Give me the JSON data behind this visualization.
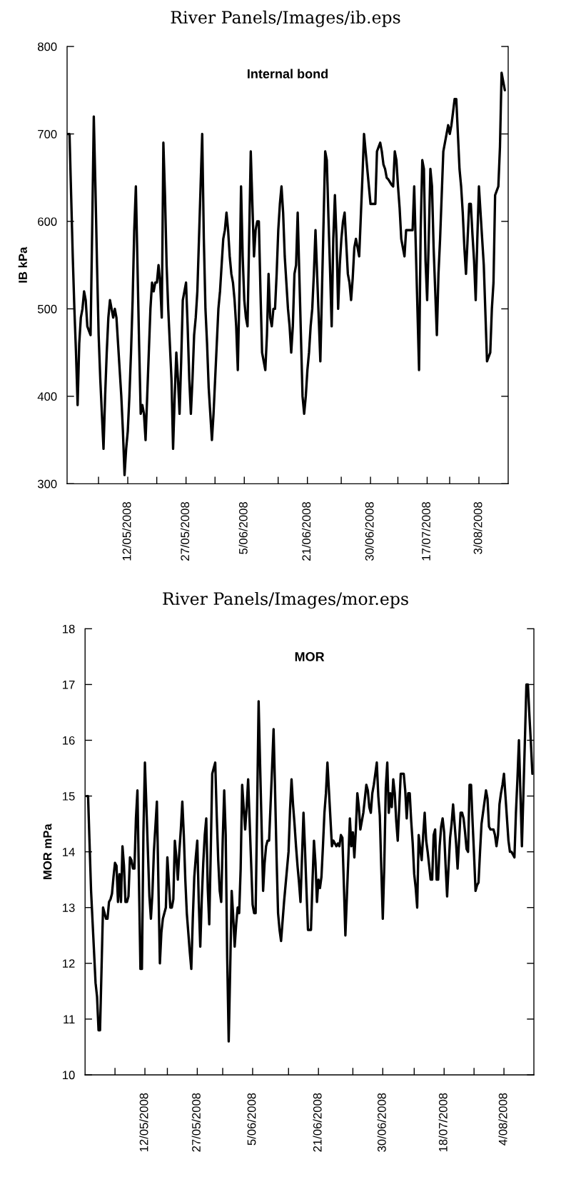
{
  "chart_data": [
    {
      "type": "line",
      "title": "Internal bond",
      "ylabel": "IB kPa",
      "annotations": [
        "River Panels/Images/ib.eps"
      ],
      "ylim": [
        300,
        800
      ],
      "yticks": [
        300,
        400,
        500,
        600,
        700,
        800
      ],
      "categories": [
        null,
        null,
        null,
        null,
        null,
        null,
        null,
        null,
        null,
        null,
        null,
        null,
        null,
        null,
        null,
        null,
        null,
        null,
        null,
        null,
        null,
        null,
        null,
        null,
        null,
        null,
        null,
        null,
        null,
        null,
        null,
        null,
        null,
        null,
        null,
        null,
        null,
        "12/05/2008",
        null,
        null,
        null,
        null,
        null,
        null,
        null,
        null,
        null,
        null,
        null,
        null,
        null,
        null,
        null,
        null,
        null,
        null,
        null,
        null,
        null,
        null,
        null,
        null,
        null,
        null,
        null,
        null,
        null,
        null,
        null,
        null,
        null,
        null,
        null,
        "27/05/2008",
        null,
        null,
        null,
        null,
        null,
        null,
        null,
        null,
        null,
        null,
        null,
        null,
        null,
        null,
        null,
        null,
        null,
        null,
        null,
        null,
        null,
        null,
        null,
        null,
        null,
        null,
        null,
        null,
        null,
        null,
        null,
        null,
        null,
        null,
        null,
        "5/06/2008",
        null,
        null,
        null,
        null,
        null,
        null,
        null,
        null,
        null,
        null,
        null,
        null,
        null,
        null,
        null,
        null,
        null,
        null,
        null,
        null,
        null,
        null,
        null,
        null,
        null,
        null,
        null,
        null,
        null,
        null,
        null,
        null,
        null,
        null,
        null,
        null,
        null,
        null,
        "21/06/2008",
        null,
        null,
        null,
        null,
        null,
        null,
        null,
        null,
        null,
        null,
        null,
        null,
        null,
        null,
        null,
        null,
        null,
        null,
        null,
        null,
        null,
        null,
        null,
        null,
        null,
        null,
        null,
        null,
        null,
        null,
        null,
        null,
        null,
        null,
        null,
        null,
        null,
        null,
        "30/06/2008",
        null,
        null,
        null,
        null,
        null,
        null,
        null,
        null,
        null,
        null,
        null,
        null,
        null,
        null,
        null,
        null,
        null,
        null,
        null,
        null,
        null,
        null,
        null,
        null,
        null,
        null,
        null,
        null,
        null,
        null,
        null,
        null,
        null,
        null,
        "17/07/2008",
        null,
        null,
        null,
        null,
        null,
        null,
        null,
        null,
        null,
        null,
        null,
        null,
        null,
        null,
        null,
        null,
        null,
        null,
        null,
        null,
        null,
        null,
        null,
        null,
        null,
        null,
        null,
        null,
        null,
        null,
        null,
        "3/08/2008",
        null,
        null,
        null,
        null,
        null,
        null,
        null,
        null,
        null,
        null,
        null,
        null,
        null,
        null,
        null,
        null
      ],
      "series": [
        {
          "color": "#000000",
          "values": [
            700,
            700,
            630,
            560,
            500,
            450,
            390,
            460,
            490,
            500,
            520,
            510,
            480,
            475,
            470,
            590,
            720,
            640,
            550,
            470,
            420,
            380,
            340,
            400,
            450,
            490,
            510,
            500,
            490,
            500,
            490,
            460,
            430,
            400,
            360,
            310,
            340,
            360,
            400,
            450,
            510,
            590,
            640,
            550,
            460,
            380,
            390,
            380,
            350,
            400,
            450,
            500,
            530,
            520,
            530,
            530,
            550,
            530,
            490,
            690,
            630,
            550,
            500,
            460,
            420,
            340,
            400,
            450,
            420,
            380,
            440,
            510,
            520,
            530,
            480,
            420,
            380,
            420,
            470,
            490,
            520,
            580,
            640,
            700,
            580,
            500,
            460,
            410,
            380,
            350,
            380,
            420,
            460,
            500,
            520,
            550,
            580,
            590,
            610,
            590,
            560,
            540,
            530,
            510,
            480,
            430,
            520,
            640,
            560,
            510,
            490,
            480,
            580,
            680,
            620,
            560,
            590,
            600,
            600,
            520,
            450,
            440,
            430,
            470,
            540,
            490,
            480,
            500,
            500,
            540,
            590,
            620,
            640,
            610,
            560,
            530,
            500,
            480,
            450,
            480,
            540,
            550,
            610,
            540,
            470,
            400,
            380,
            400,
            430,
            450,
            480,
            500,
            540,
            590,
            540,
            490,
            440,
            520,
            600,
            680,
            670,
            605,
            545,
            480,
            580,
            630,
            580,
            500,
            550,
            580,
            600,
            610,
            575,
            540,
            530,
            510,
            535,
            570,
            580,
            570,
            560,
            605,
            650,
            700,
            680,
            660,
            640,
            620,
            620,
            620,
            620,
            680,
            685,
            690,
            680,
            665,
            660,
            650,
            648,
            645,
            642,
            640,
            680,
            670,
            640,
            615,
            580,
            570,
            560,
            590,
            590,
            590,
            590,
            590,
            640,
            570,
            500,
            430,
            590,
            670,
            660,
            555,
            510,
            580,
            660,
            640,
            570,
            520,
            470,
            540,
            580,
            630,
            680,
            690,
            700,
            710,
            700,
            710,
            725,
            740,
            740,
            700,
            660,
            640,
            610,
            570,
            540,
            580,
            620,
            620,
            585,
            555,
            510,
            580,
            640,
            610,
            580,
            550,
            495,
            440,
            445,
            450,
            500,
            530,
            630,
            635,
            640,
            685,
            770,
            760,
            750
          ]
        }
      ]
    },
    {
      "type": "line",
      "title": "MOR",
      "ylabel": "MOR mPa",
      "annotations": [
        "River Panels/Images/mor.eps"
      ],
      "ylim": [
        10,
        18
      ],
      "yticks": [
        10,
        11,
        12,
        13,
        14,
        15,
        16,
        17,
        18
      ],
      "categories": [
        null,
        null,
        null,
        null,
        null,
        null,
        null,
        null,
        null,
        null,
        null,
        null,
        null,
        null,
        null,
        null,
        null,
        null,
        null,
        null,
        null,
        null,
        null,
        null,
        null,
        null,
        null,
        null,
        null,
        null,
        null,
        null,
        null,
        null,
        null,
        null,
        null,
        null,
        null,
        "12/05/2008",
        null,
        null,
        null,
        null,
        null,
        null,
        null,
        null,
        null,
        null,
        null,
        null,
        null,
        null,
        null,
        null,
        null,
        null,
        null,
        null,
        null,
        null,
        null,
        null,
        null,
        null,
        null,
        null,
        null,
        null,
        null,
        null,
        null,
        null,
        "27/05/2008",
        null,
        null,
        null,
        null,
        null,
        null,
        null,
        null,
        null,
        null,
        null,
        null,
        null,
        null,
        null,
        null,
        null,
        null,
        null,
        null,
        null,
        null,
        null,
        null,
        null,
        null,
        null,
        null,
        null,
        null,
        null,
        null,
        null,
        null,
        null,
        null,
        "5/06/2008",
        null,
        null,
        null,
        null,
        null,
        null,
        null,
        null,
        null,
        null,
        null,
        null,
        null,
        null,
        null,
        null,
        null,
        null,
        null,
        null,
        null,
        null,
        null,
        null,
        null,
        null,
        null,
        null,
        null,
        null,
        null,
        null,
        null,
        null,
        null,
        null,
        null,
        null,
        null,
        null,
        null,
        null,
        null,
        "21/06/2008",
        null,
        null,
        null,
        null,
        null,
        null,
        null,
        null,
        null,
        null,
        null,
        null,
        null,
        null,
        null,
        null,
        null,
        null,
        null,
        null,
        null,
        null,
        null,
        null,
        null,
        null,
        null,
        null,
        null,
        null,
        null,
        null,
        null,
        null,
        null,
        null,
        null,
        null,
        null,
        null,
        null,
        null,
        "30/06/2008",
        null,
        null,
        null,
        null,
        null,
        null,
        null,
        null,
        null,
        null,
        null,
        null,
        null,
        null,
        null,
        null,
        null,
        null,
        null,
        null,
        null,
        null,
        null,
        null,
        null,
        null,
        null,
        null,
        null,
        null,
        null,
        null,
        null,
        null,
        null,
        null,
        null,
        null,
        null,
        null,
        "18/07/2008",
        null,
        null,
        null,
        null,
        null,
        null,
        null,
        null,
        null,
        null,
        null,
        null,
        null,
        null,
        null,
        null,
        null,
        null,
        null,
        null,
        null,
        null,
        null,
        null,
        null,
        null,
        null,
        null,
        null,
        null,
        null,
        null,
        null,
        null,
        null,
        null,
        null,
        null,
        null,
        "4/08/2008",
        null,
        null,
        null,
        null,
        null,
        null,
        null,
        null,
        null,
        null,
        null,
        null,
        null,
        null,
        null,
        null,
        null,
        null,
        null
      ],
      "series": [
        {
          "color": "#000000",
          "values": [
            15.0,
            15.0,
            14.15,
            13.3,
            12.75,
            12.2,
            11.65,
            11.4,
            10.8,
            10.8,
            11.9,
            13.0,
            12.9,
            12.8,
            12.8,
            13.1,
            13.15,
            13.25,
            13.55,
            13.8,
            13.75,
            13.1,
            13.6,
            13.1,
            14.1,
            13.75,
            13.1,
            13.1,
            13.2,
            13.9,
            13.85,
            13.7,
            13.7,
            14.6,
            15.1,
            13.5,
            11.9,
            11.9,
            14.35,
            15.6,
            14.8,
            14.0,
            13.2,
            12.8,
            13.25,
            14.0,
            14.45,
            14.9,
            13.45,
            12.0,
            12.55,
            12.8,
            12.9,
            13.0,
            13.9,
            13.45,
            13.0,
            13.0,
            13.15,
            14.2,
            13.9,
            13.5,
            14.0,
            14.4,
            14.9,
            14.3,
            13.5,
            12.9,
            12.55,
            12.2,
            11.9,
            12.8,
            13.55,
            13.9,
            14.2,
            13.1,
            12.3,
            13.15,
            13.8,
            14.3,
            14.6,
            13.35,
            12.7,
            14.0,
            15.4,
            15.5,
            15.6,
            14.65,
            13.85,
            13.3,
            13.1,
            14.2,
            15.1,
            14.3,
            12.1,
            10.6,
            11.9,
            13.3,
            12.85,
            12.3,
            12.7,
            13.0,
            12.9,
            13.7,
            15.2,
            14.8,
            14.4,
            14.8,
            15.3,
            14.55,
            13.8,
            13.05,
            12.9,
            12.9,
            14.75,
            16.7,
            15.55,
            14.45,
            13.3,
            13.8,
            14.1,
            14.2,
            14.2,
            14.85,
            15.5,
            16.2,
            15.1,
            13.9,
            12.9,
            12.6,
            12.4,
            12.75,
            13.1,
            13.4,
            13.7,
            14.0,
            14.75,
            15.3,
            14.85,
            14.5,
            14.1,
            13.75,
            13.45,
            13.1,
            13.9,
            14.7,
            14.05,
            13.3,
            12.6,
            12.6,
            12.6,
            13.45,
            14.2,
            13.8,
            13.1,
            13.5,
            13.35,
            13.55,
            14.1,
            14.7,
            15.05,
            15.6,
            15.1,
            14.6,
            14.1,
            14.2,
            14.15,
            14.1,
            14.15,
            14.1,
            14.3,
            14.25,
            13.4,
            12.5,
            13.2,
            13.9,
            14.6,
            14.1,
            14.35,
            13.9,
            14.4,
            15.05,
            14.8,
            14.4,
            14.55,
            14.7,
            14.95,
            15.2,
            15.1,
            14.8,
            14.7,
            15.05,
            15.2,
            15.4,
            15.6,
            15.0,
            14.65,
            13.7,
            12.8,
            13.75,
            15.15,
            15.6,
            14.7,
            15.05,
            14.8,
            15.3,
            15.05,
            14.55,
            14.2,
            14.8,
            15.4,
            15.4,
            15.4,
            15.1,
            14.6,
            15.05,
            15.05,
            14.55,
            14.15,
            13.6,
            13.35,
            13.0,
            14.3,
            14.05,
            13.85,
            14.3,
            14.7,
            14.2,
            14.0,
            13.75,
            13.5,
            13.5,
            14.3,
            14.4,
            13.5,
            13.5,
            14.1,
            14.45,
            14.6,
            14.35,
            13.75,
            13.2,
            13.75,
            14.25,
            14.5,
            14.85,
            14.5,
            14.15,
            13.7,
            14.2,
            14.7,
            14.7,
            14.6,
            14.35,
            14.05,
            14.0,
            15.2,
            15.2,
            14.55,
            13.95,
            13.3,
            13.4,
            13.45,
            14.0,
            14.5,
            14.7,
            14.9,
            15.1,
            14.95,
            14.45,
            14.4,
            14.4,
            14.4,
            14.3,
            14.1,
            14.3,
            14.85,
            15.05,
            15.2,
            15.4,
            15.0,
            14.6,
            14.2,
            14.0,
            14.0,
            13.95,
            13.9,
            14.7,
            15.3,
            16.0,
            15.05,
            14.1,
            15.05,
            16.0,
            17.0,
            17.0,
            16.45,
            15.95,
            15.4
          ]
        }
      ]
    }
  ]
}
